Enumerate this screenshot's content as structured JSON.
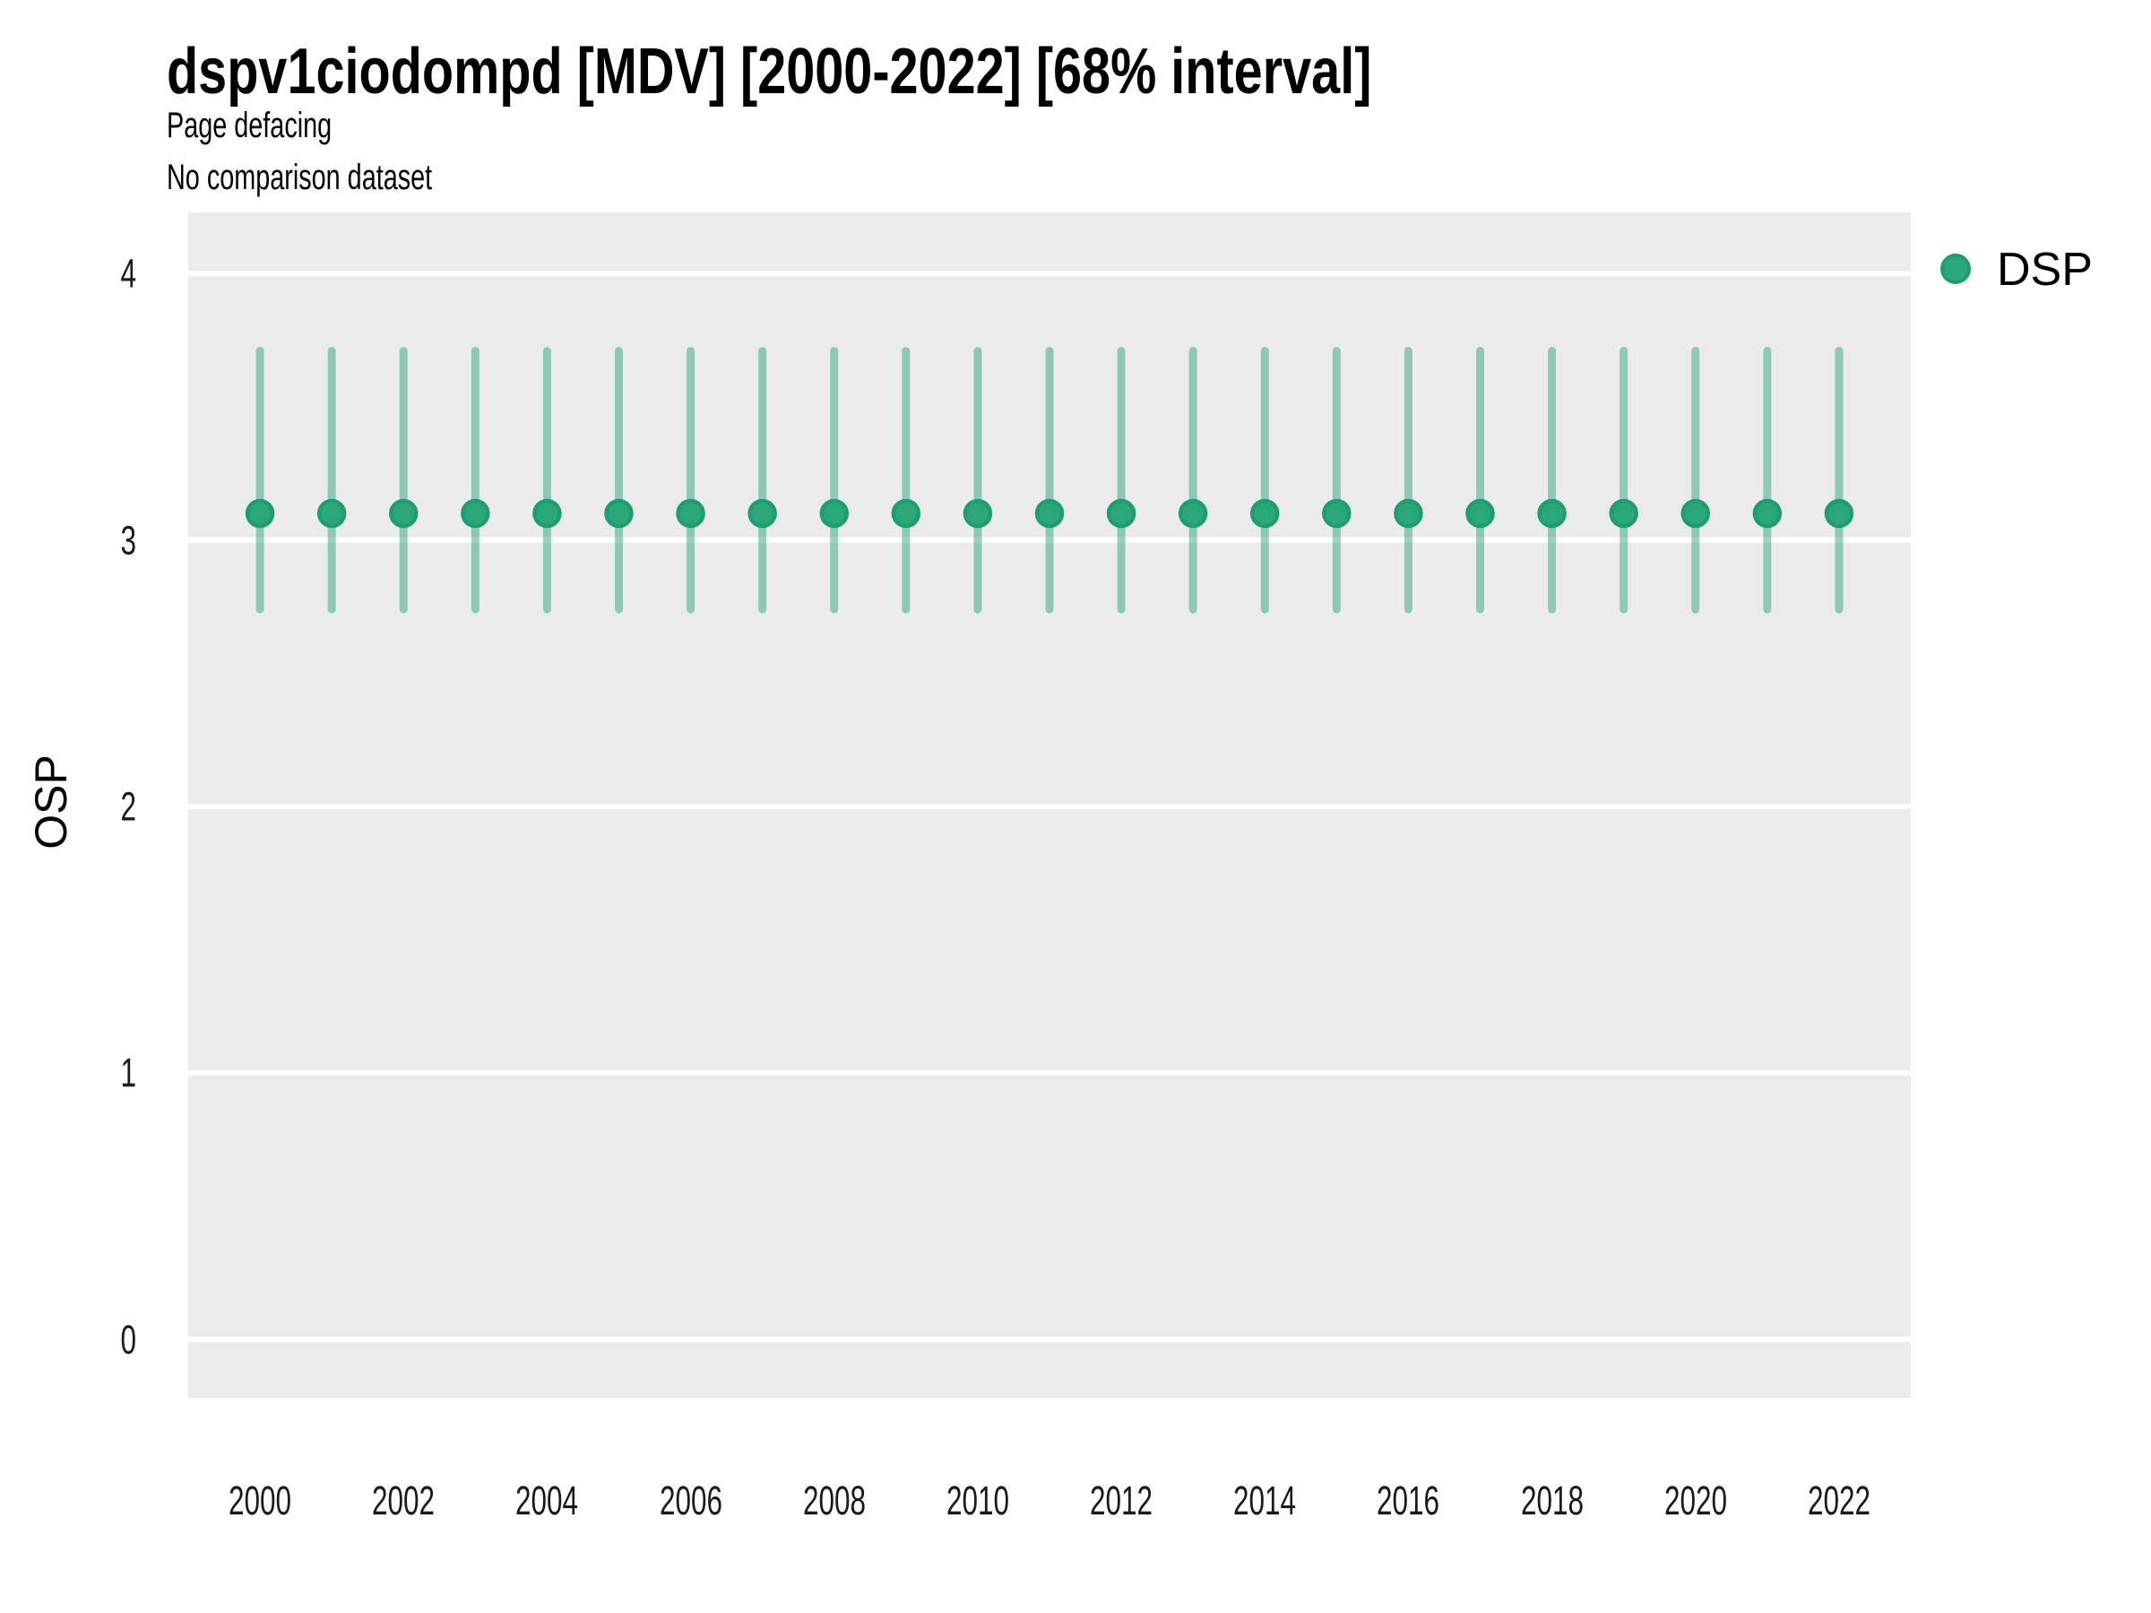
{
  "page": {
    "background": "#ffffff"
  },
  "header": {
    "title": "dspv1ciodompd [MDV] [2000-2022] [68% interval]",
    "subtitle": "Page defacing",
    "note": "No comparison dataset"
  },
  "legend": {
    "position": "right-top",
    "items": [
      {
        "label": "DSP",
        "color": "#2aa87a"
      }
    ]
  },
  "axes": {
    "ylabel": "OSP",
    "xlabel": "",
    "y_tick_labels": [
      "0",
      "1",
      "2",
      "3",
      "4"
    ],
    "x_tick_labels": [
      "2000",
      "2002",
      "2004",
      "2006",
      "2008",
      "2010",
      "2012",
      "2014",
      "2016",
      "2018",
      "2020",
      "2022"
    ]
  },
  "chart_data": {
    "type": "pointrange",
    "title": "dspv1ciodompd [MDV] [2000-2022] [68% interval]",
    "subtitle": "Page defacing",
    "note": "No comparison dataset",
    "interval_label": "68% interval",
    "xlabel": "",
    "ylabel": "OSP",
    "legend_position": "right-top",
    "grid": "horizontal major gridlines only, white on gray panel",
    "panel_background": "#ebebeb",
    "gridline_color": "#ffffff",
    "gridline_width": 6,
    "x_range": [
      1999,
      2023
    ],
    "y_range": [
      -0.22,
      4.23
    ],
    "x_ticks": [
      2000,
      2002,
      2004,
      2006,
      2008,
      2010,
      2012,
      2014,
      2016,
      2018,
      2020,
      2022
    ],
    "y_ticks": [
      0,
      1,
      2,
      3,
      4
    ],
    "x": [
      2000,
      2001,
      2002,
      2003,
      2004,
      2005,
      2006,
      2007,
      2008,
      2009,
      2010,
      2011,
      2012,
      2013,
      2014,
      2015,
      2016,
      2017,
      2018,
      2019,
      2020,
      2021,
      2022
    ],
    "series": [
      {
        "name": "DSP",
        "point_color": "#2aa87a",
        "point_stroke": "#1e9e6d",
        "range_color": "#1b9e77",
        "range_alpha": 0.45,
        "mid": [
          3.1,
          3.1,
          3.1,
          3.1,
          3.1,
          3.1,
          3.1,
          3.1,
          3.1,
          3.1,
          3.1,
          3.1,
          3.1,
          3.1,
          3.1,
          3.1,
          3.1,
          3.1,
          3.1,
          3.1,
          3.1,
          3.1,
          3.1
        ],
        "lo": [
          2.74,
          2.74,
          2.74,
          2.74,
          2.74,
          2.74,
          2.74,
          2.74,
          2.74,
          2.74,
          2.74,
          2.74,
          2.74,
          2.74,
          2.74,
          2.74,
          2.74,
          2.74,
          2.74,
          2.74,
          2.74,
          2.74,
          2.74
        ],
        "hi": [
          3.71,
          3.71,
          3.71,
          3.71,
          3.71,
          3.71,
          3.71,
          3.71,
          3.71,
          3.71,
          3.71,
          3.71,
          3.71,
          3.71,
          3.71,
          3.71,
          3.71,
          3.71,
          3.71,
          3.71,
          3.71,
          3.71,
          3.71
        ]
      }
    ]
  }
}
